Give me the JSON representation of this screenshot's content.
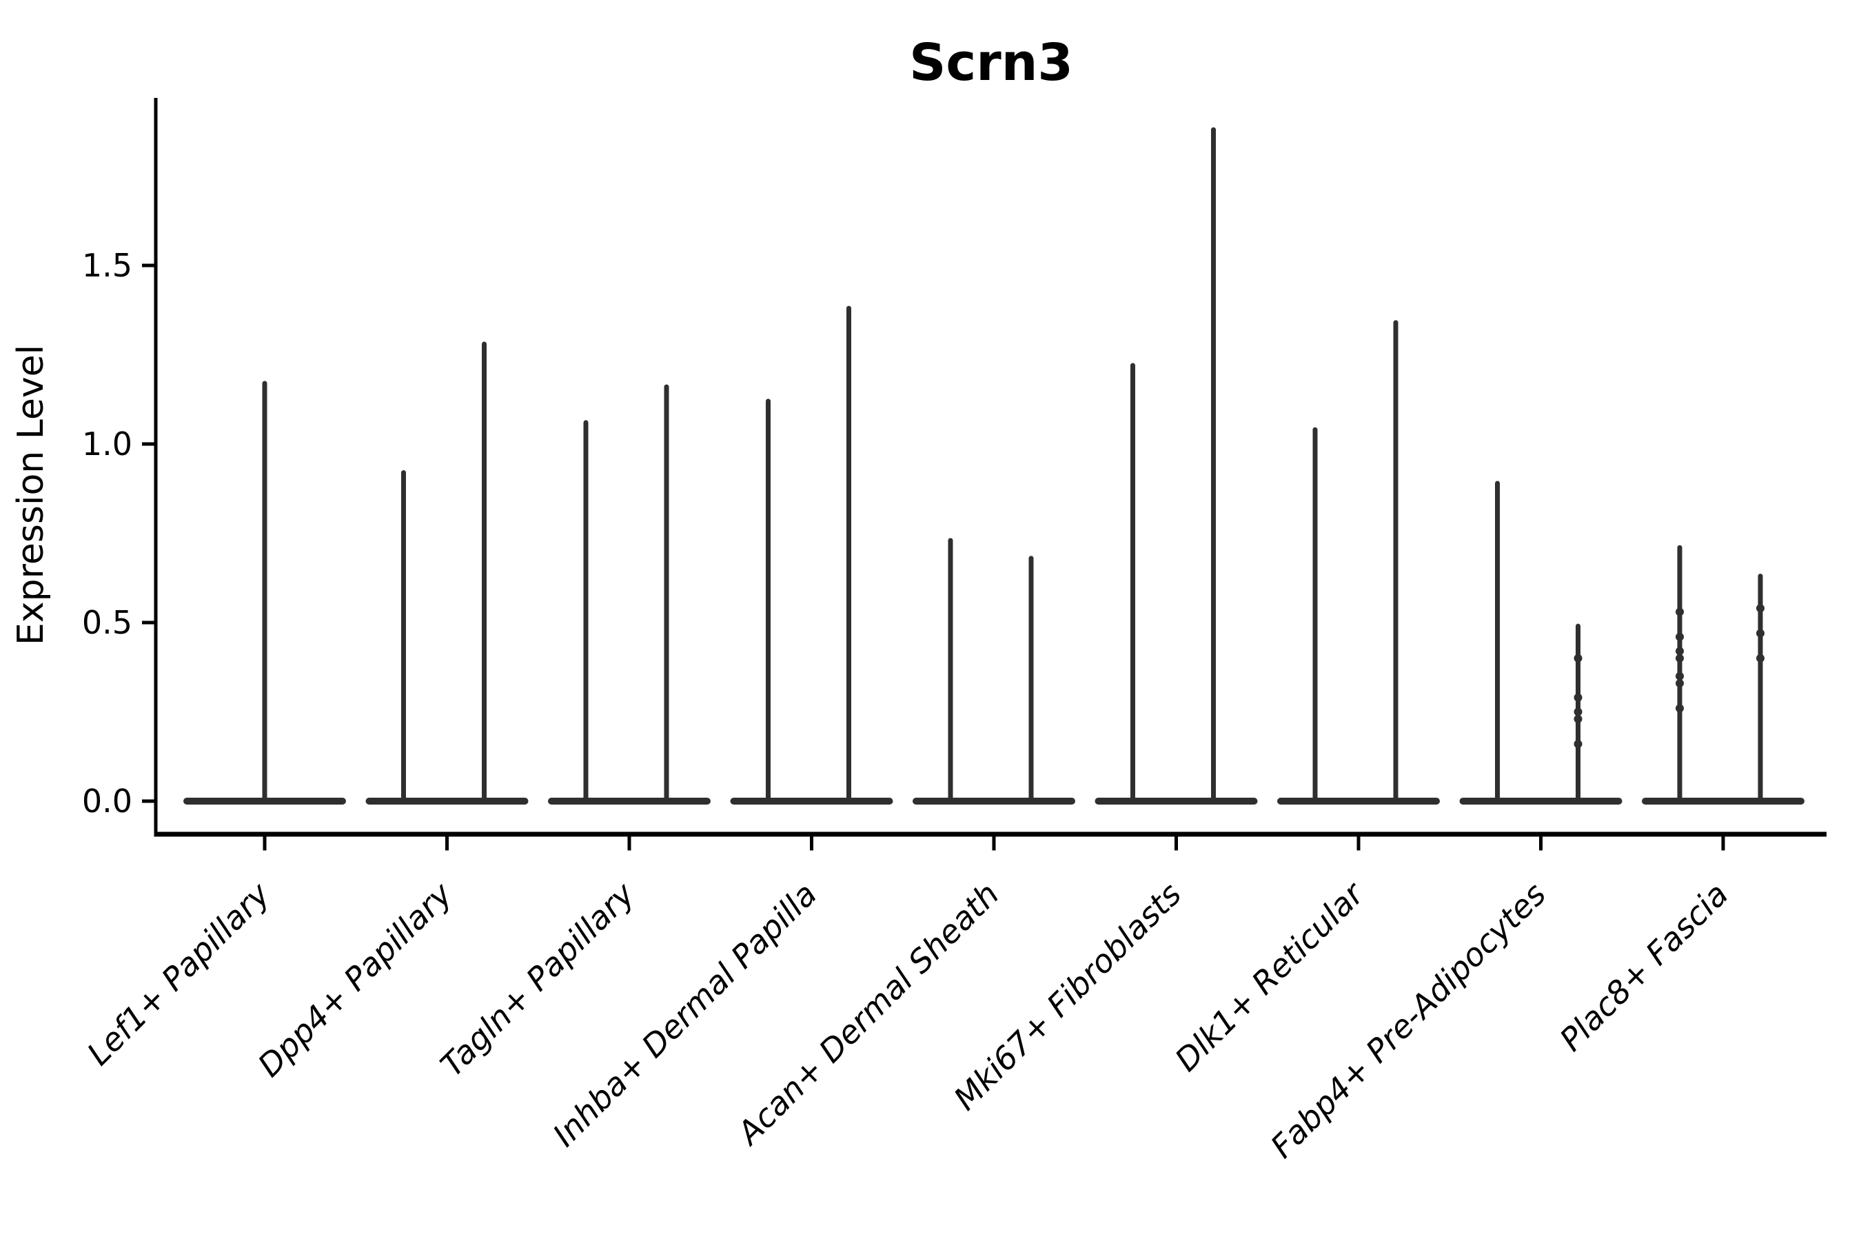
{
  "title": "Scrn3",
  "chart_data": {
    "type": "violin",
    "title": "Scrn3",
    "ylabel": "Expression Level",
    "xlabel": "",
    "ylim": [
      0,
      1.97
    ],
    "yticks": [
      "0.0",
      "0.5",
      "1.0",
      "1.5"
    ],
    "ytick_values": [
      0,
      0.5,
      1.0,
      1.5
    ],
    "grid": false,
    "legend_position": "none",
    "baseline_value": 0,
    "note_shape": "Each violin collapses to a wide flat base at expression 0 with a thin vertical density spike; categories after the first contain two violins",
    "categories": [
      {
        "label": "Lef1+ Papillary",
        "violin_peaks": [
          1.17
        ],
        "violin_dots": [
          []
        ]
      },
      {
        "label": "Dpp4+ Papillary",
        "violin_peaks": [
          0.92,
          1.28
        ],
        "violin_dots": [
          [],
          []
        ]
      },
      {
        "label": "Tagln+ Papillary",
        "violin_peaks": [
          1.06,
          1.16
        ],
        "violin_dots": [
          [],
          []
        ]
      },
      {
        "label": "Inhba+ Dermal Papilla",
        "violin_peaks": [
          1.12,
          1.38
        ],
        "violin_dots": [
          [],
          []
        ]
      },
      {
        "label": "Acan+ Dermal Sheath",
        "violin_peaks": [
          0.73,
          0.68
        ],
        "violin_dots": [
          [],
          []
        ]
      },
      {
        "label": "Mki67+ Fibroblasts",
        "violin_peaks": [
          1.22,
          1.88
        ],
        "violin_dots": [
          [],
          []
        ]
      },
      {
        "label": "Dlk1+ Reticular",
        "violin_peaks": [
          1.04,
          1.34
        ],
        "violin_dots": [
          [],
          []
        ]
      },
      {
        "label": "Fabp4+ Pre-Adipocytes",
        "violin_peaks": [
          0.89,
          0.49
        ],
        "violin_dots": [
          [],
          [
            0.4,
            0.29,
            0.25,
            0.23,
            0.16
          ]
        ]
      },
      {
        "label": "Plac8+ Fascia",
        "violin_peaks": [
          0.71,
          0.63
        ],
        "violin_dots": [
          [
            0.53,
            0.46,
            0.42,
            0.4,
            0.35,
            0.33,
            0.26
          ],
          [
            0.54,
            0.47,
            0.4
          ]
        ]
      }
    ],
    "colors": {
      "violin": "#2f2f2f",
      "axis": "#000000",
      "text": "#000000",
      "background": "#ffffff"
    }
  }
}
